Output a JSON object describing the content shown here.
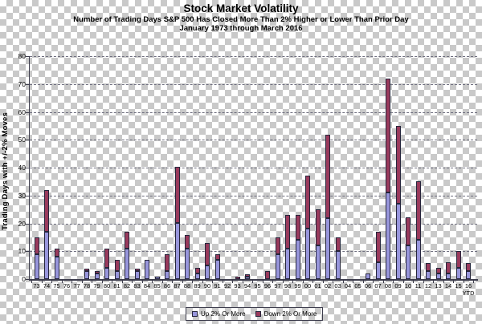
{
  "header": {
    "title": "Stock Market Volatility",
    "subtitle": "Number of Trading Days S&P 500 Has Closed More Than 2% Higher or Lower Than Prior Day",
    "period": "January 1973 through March 2016"
  },
  "y_axis": {
    "title": "Trading Days with +/-2% Moves",
    "ticks": [
      0,
      10,
      20,
      30,
      40,
      50,
      60,
      70,
      80
    ]
  },
  "legend": {
    "up": "Up 2% Or More",
    "down": "Down 2% Or More"
  },
  "colors": {
    "up_fill": "#9896DC",
    "down_fill": "#993A5C",
    "bar_border": "#26263C",
    "grid": "#6E6E7E",
    "axis": "#3C3C4C",
    "checker": "#C9C9C9",
    "text": "#000000"
  },
  "chart_data": {
    "type": "bar",
    "stacked": true,
    "title": "Stock Market Volatility",
    "subtitle": "Number of Trading Days S&P 500 Has Closed More Than 2% Higher or Lower Than Prior Day",
    "period": "January 1973 through March 2016",
    "ylabel": "Trading Days with +/-2% Moves",
    "xlabel": "",
    "ylim": [
      0,
      80
    ],
    "ytick_interval": 10,
    "grid": "horizontal-dashed",
    "legend_position": "bottom-center",
    "background": "transparent-checkerboard",
    "x_note_under_last": "YTD",
    "categories": [
      "73",
      "74",
      "75",
      "76",
      "77",
      "78",
      "79",
      "80",
      "81",
      "82",
      "83",
      "84",
      "85",
      "86",
      "87",
      "88",
      "89",
      "90",
      "91",
      "92",
      "93",
      "94",
      "95",
      "96",
      "97",
      "98",
      "99",
      "00",
      "01",
      "02",
      "03",
      "04",
      "05",
      "06",
      "07",
      "08",
      "09",
      "10",
      "11",
      "12",
      "13",
      "14",
      "15",
      "16"
    ],
    "series": [
      {
        "name": "Up 2% Or More",
        "color": "#9896DC",
        "values": [
          9,
          17,
          8,
          0,
          0,
          3,
          2,
          4,
          3,
          11,
          3,
          7,
          1,
          3,
          20,
          11,
          2,
          5,
          7,
          0,
          0,
          1,
          0,
          0,
          9,
          11,
          14,
          18,
          12,
          22,
          10,
          0,
          0,
          2,
          6,
          31,
          27,
          12,
          14,
          3,
          2,
          2,
          4,
          3
        ]
      },
      {
        "name": "Down 2% Or More",
        "color": "#993A5C",
        "values": [
          6,
          15,
          3,
          0,
          0,
          1,
          1,
          7,
          4,
          6,
          1,
          0,
          0,
          6,
          20,
          5,
          2,
          8,
          2,
          0,
          1,
          1,
          0,
          3,
          6,
          12,
          9,
          19,
          13,
          30,
          5,
          0,
          0,
          0,
          11,
          41,
          28,
          10,
          21,
          3,
          2,
          4,
          6,
          3
        ]
      }
    ]
  }
}
